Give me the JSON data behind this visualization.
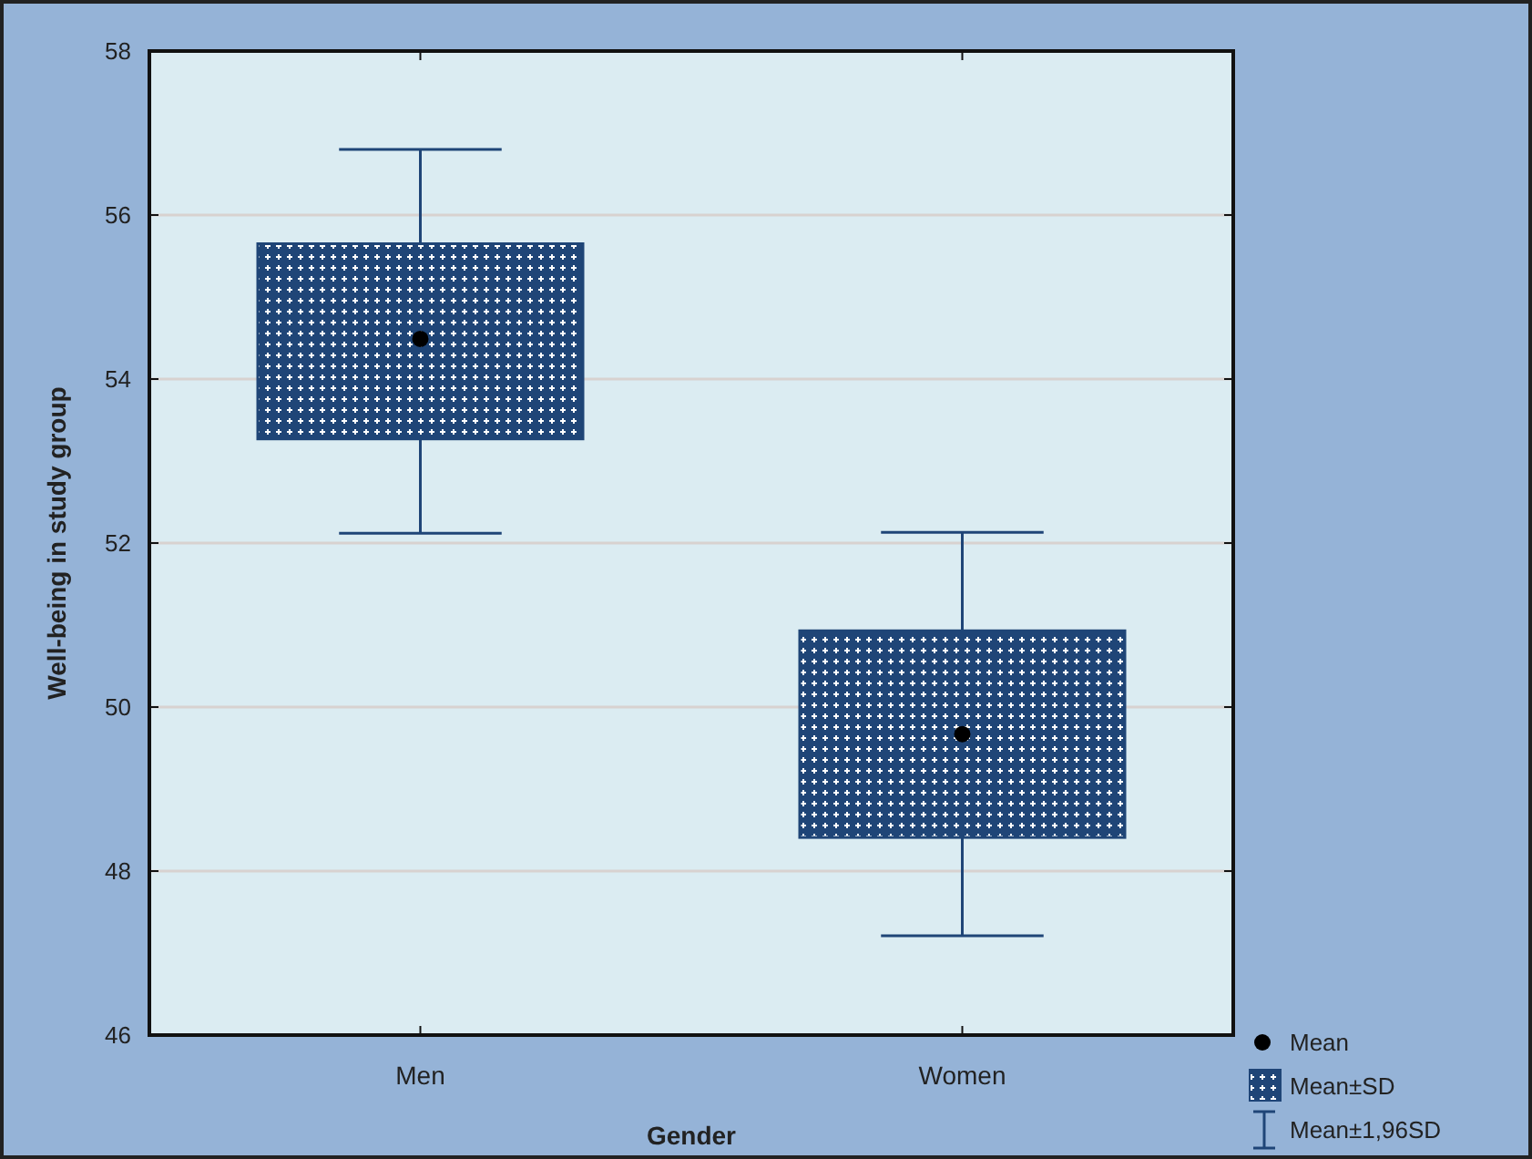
{
  "chart_data": {
    "type": "box",
    "xlabel": "Gender",
    "ylabel": "Well-being in study group",
    "categories": [
      "Men",
      "Women"
    ],
    "ylim": [
      46,
      58
    ],
    "yticks": [
      46,
      48,
      50,
      52,
      54,
      56,
      58
    ],
    "grid": "y",
    "legend": "bottom right",
    "series": [
      {
        "name": "Mean",
        "type": "scatter",
        "x": [
          "Men",
          "Women"
        ],
        "values": [
          54.49,
          49.67
        ],
        "color": "#000000"
      },
      {
        "name": "Mean±SD",
        "type": "box",
        "color": "#1f4577",
        "boxes": [
          {
            "low": 52.12,
            "q1": 53.27,
            "median": 54.49,
            "q3": 55.65,
            "high": 56.8
          },
          {
            "low": 47.21,
            "q1": 48.41,
            "median": 49.67,
            "q3": 50.93,
            "high": 52.13
          }
        ]
      }
    ],
    "annotations": [
      "Mean±1,96SD"
    ]
  }
}
